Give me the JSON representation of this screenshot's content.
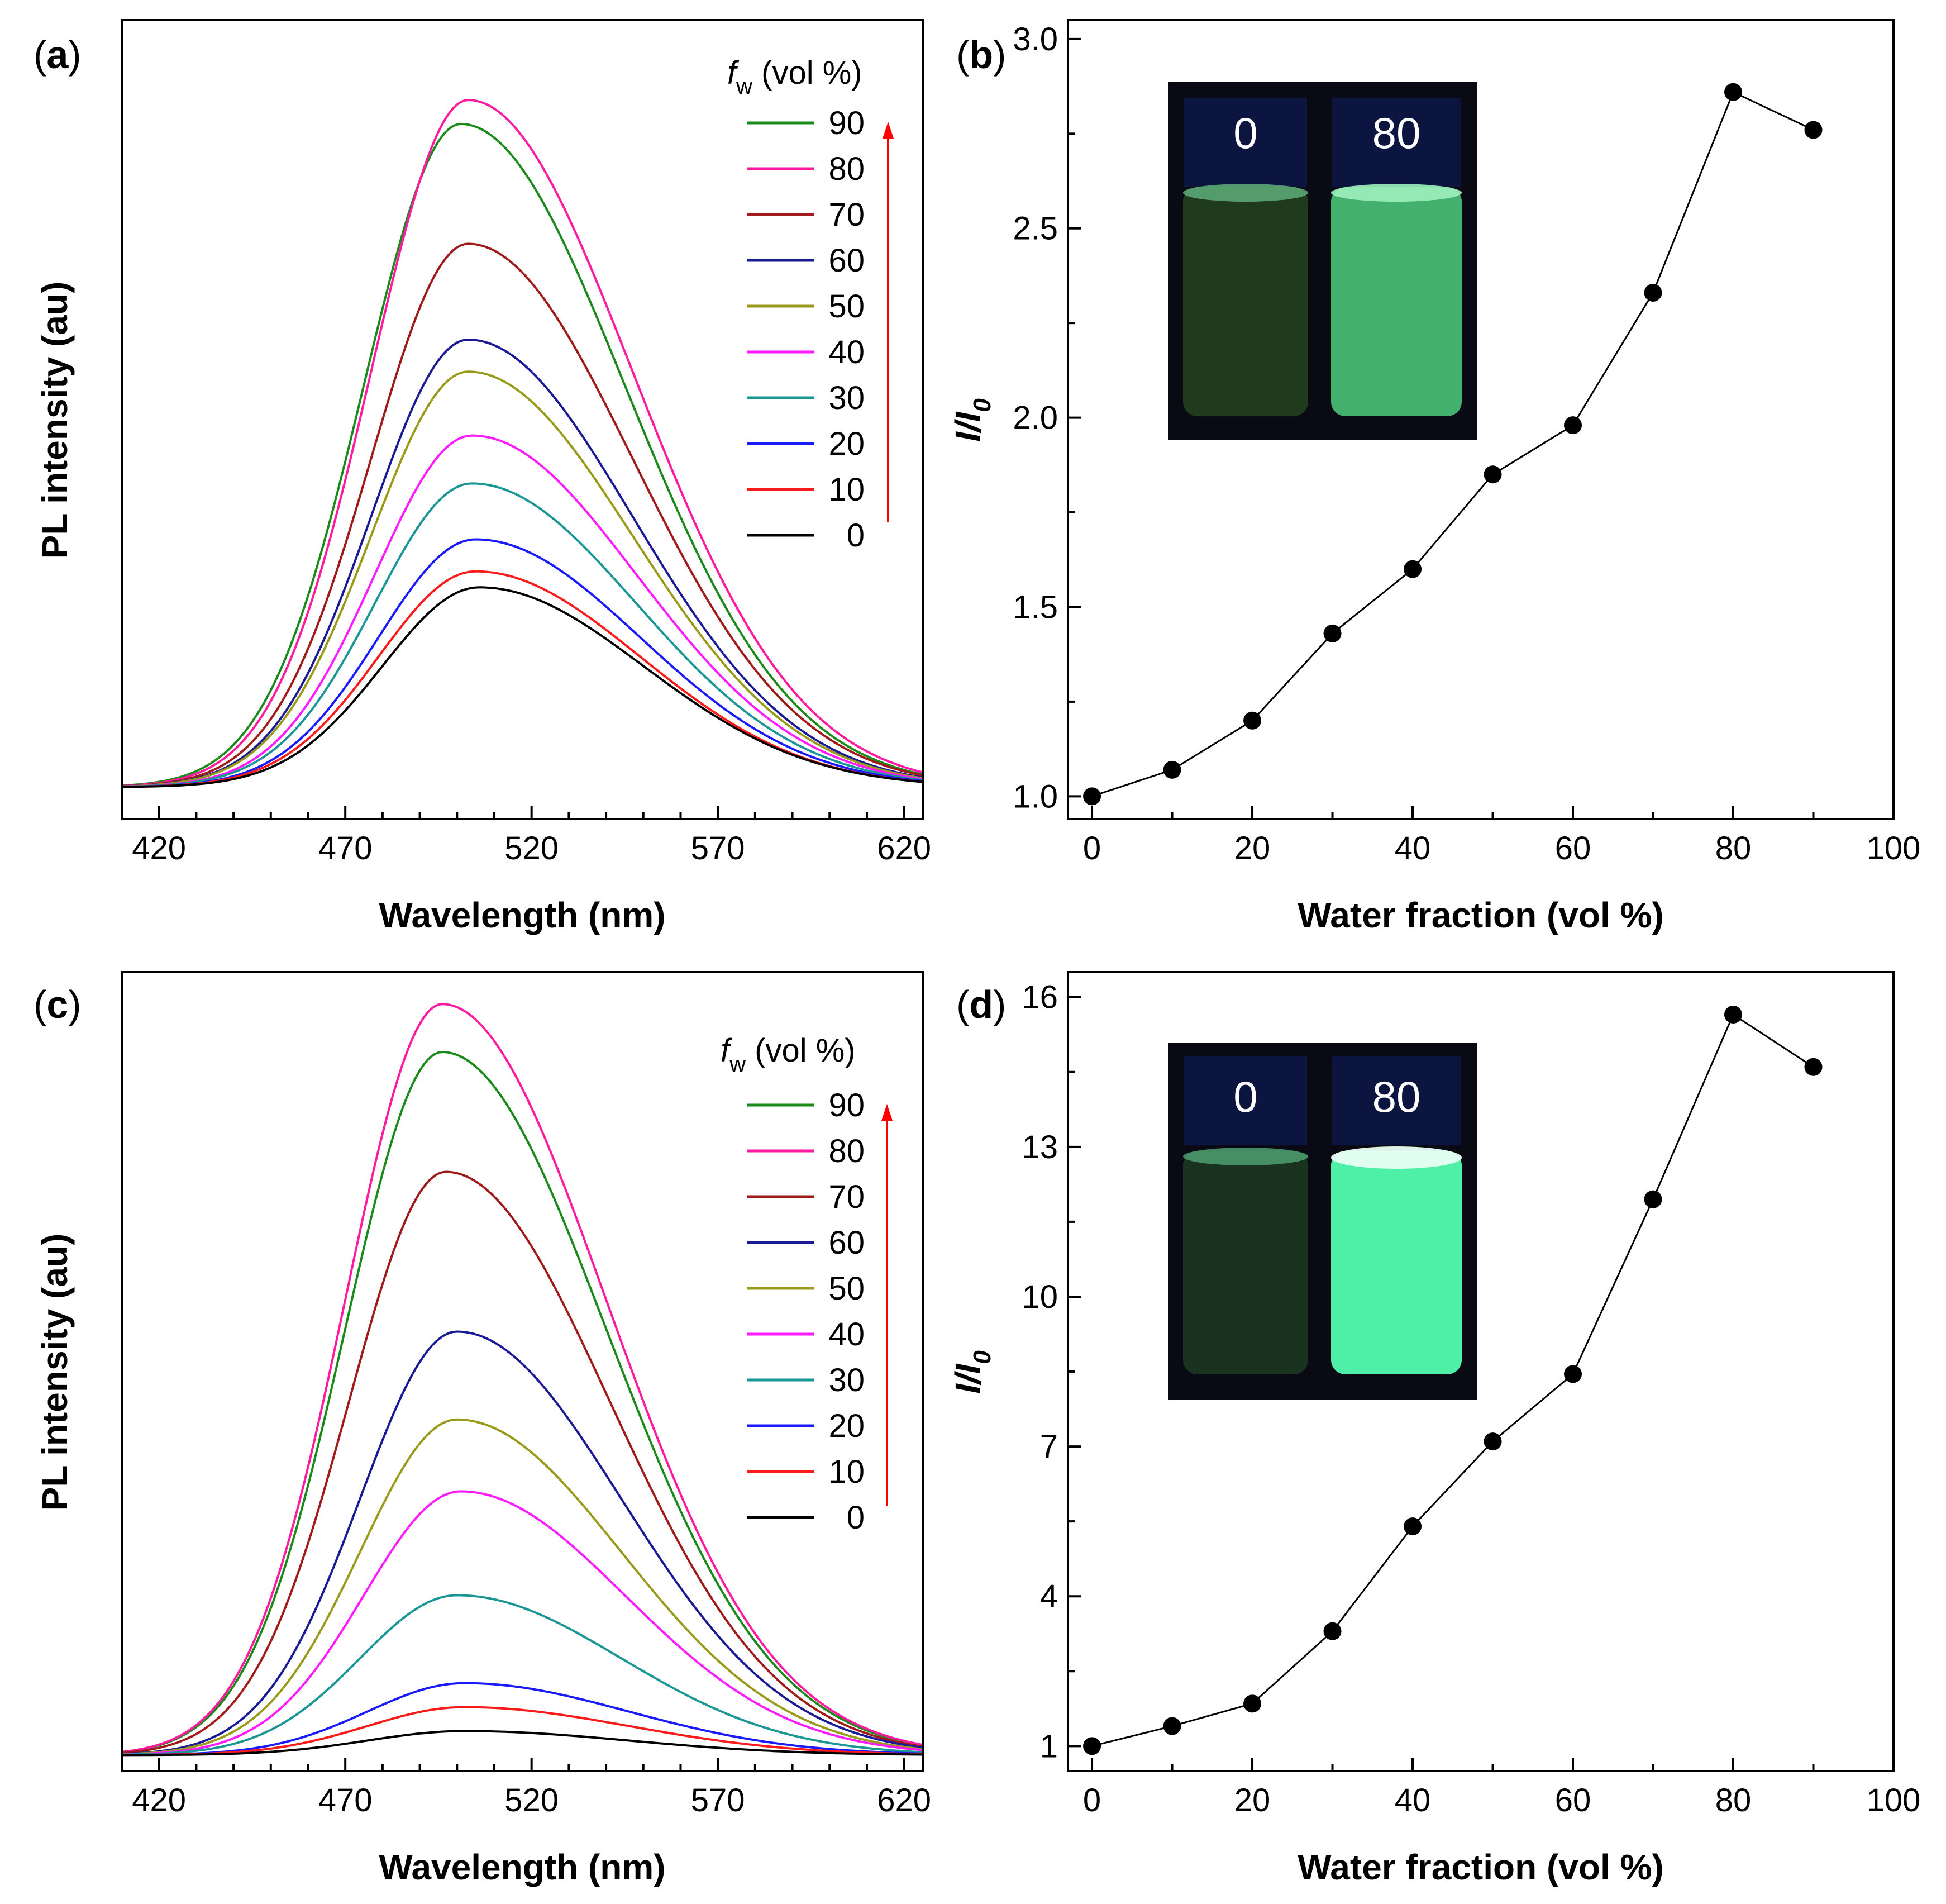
{
  "colors": {
    "f90": "#1a8a1a",
    "f80": "#ff1aa0",
    "f70": "#a01a1a",
    "f60": "#1a1a96",
    "f50": "#9a9a1a",
    "f40": "#ff1aff",
    "f30": "#1a9696",
    "f20": "#1a1aff",
    "f10": "#ff1a1a",
    "f0": "#000000",
    "arrow": "#ff0000",
    "inset_bg": "#0a0a14"
  },
  "panels": {
    "a": {
      "label_open": "(",
      "label_letter": "a",
      "label_close": ")"
    },
    "b": {
      "label_open": "(",
      "label_letter": "b",
      "label_close": ")"
    },
    "c": {
      "label_open": "(",
      "label_letter": "c",
      "label_close": ")"
    },
    "d": {
      "label_open": "(",
      "label_letter": "d",
      "label_close": ")"
    }
  },
  "legend": {
    "title_f": "f",
    "title_sub": "w",
    "title_rest": " (vol %)"
  },
  "insets": {
    "b": {
      "left_label": "0",
      "right_label": "80"
    },
    "d": {
      "left_label": "0",
      "right_label": "80"
    }
  },
  "chart_data": [
    {
      "panel": "a",
      "type": "line",
      "xlabel": "Wavelength (nm)",
      "ylabel": "PL intensity (au)",
      "xlim": [
        410,
        625
      ],
      "xticks": [
        420,
        470,
        520,
        570,
        620
      ],
      "ylim": [
        0,
        1
      ],
      "y_ticks_labeled": false,
      "series": [
        {
          "name": "90",
          "peak_x": 501,
          "peak_y": 0.87,
          "base_y": 0.04
        },
        {
          "name": "80",
          "peak_x": 503,
          "peak_y": 0.9,
          "base_y": 0.04
        },
        {
          "name": "70",
          "peak_x": 503,
          "peak_y": 0.72,
          "base_y": 0.04
        },
        {
          "name": "60",
          "peak_x": 503,
          "peak_y": 0.6,
          "base_y": 0.04
        },
        {
          "name": "50",
          "peak_x": 503,
          "peak_y": 0.56,
          "base_y": 0.04
        },
        {
          "name": "40",
          "peak_x": 504,
          "peak_y": 0.48,
          "base_y": 0.04
        },
        {
          "name": "30",
          "peak_x": 504,
          "peak_y": 0.42,
          "base_y": 0.04
        },
        {
          "name": "20",
          "peak_x": 505,
          "peak_y": 0.35,
          "base_y": 0.04
        },
        {
          "name": "10",
          "peak_x": 505,
          "peak_y": 0.31,
          "base_y": 0.04
        },
        {
          "name": "0",
          "peak_x": 506,
          "peak_y": 0.29,
          "base_y": 0.04
        }
      ]
    },
    {
      "panel": "b",
      "type": "scatter",
      "xlabel": "Water fraction (vol %)",
      "ylabel_main": "I/I",
      "ylabel_sub": "0",
      "xlim": [
        -3,
        100
      ],
      "xticks": [
        0,
        20,
        40,
        60,
        80,
        100
      ],
      "ylim": [
        0.94,
        3.05
      ],
      "yticks": [
        "1.0",
        "1.5",
        "2.0",
        "2.5",
        "3.0"
      ],
      "x": [
        0,
        10,
        20,
        30,
        40,
        50,
        60,
        70,
        80,
        90
      ],
      "y": [
        1.0,
        1.07,
        1.2,
        1.43,
        1.6,
        1.85,
        1.98,
        2.33,
        2.86,
        2.76
      ]
    },
    {
      "panel": "c",
      "type": "line",
      "xlabel": "Wavelength (nm)",
      "ylabel": "PL intensity (au)",
      "xlim": [
        410,
        625
      ],
      "xticks": [
        420,
        470,
        520,
        570,
        620
      ],
      "ylim": [
        0,
        1
      ],
      "y_ticks_labeled": false,
      "series": [
        {
          "name": "90",
          "peak_x": 496,
          "peak_y": 0.9,
          "base_y": 0.02
        },
        {
          "name": "80",
          "peak_x": 496,
          "peak_y": 0.96,
          "base_y": 0.02
        },
        {
          "name": "70",
          "peak_x": 497,
          "peak_y": 0.75,
          "base_y": 0.02
        },
        {
          "name": "60",
          "peak_x": 500,
          "peak_y": 0.55,
          "base_y": 0.02
        },
        {
          "name": "50",
          "peak_x": 500,
          "peak_y": 0.44,
          "base_y": 0.02
        },
        {
          "name": "40",
          "peak_x": 501,
          "peak_y": 0.35,
          "base_y": 0.02
        },
        {
          "name": "30",
          "peak_x": 500,
          "peak_y": 0.22,
          "base_y": 0.02
        },
        {
          "name": "20",
          "peak_x": 502,
          "peak_y": 0.11,
          "base_y": 0.02
        },
        {
          "name": "10",
          "peak_x": 502,
          "peak_y": 0.08,
          "base_y": 0.02
        },
        {
          "name": "0",
          "peak_x": 502,
          "peak_y": 0.05,
          "base_y": 0.02
        }
      ]
    },
    {
      "panel": "d",
      "type": "scatter",
      "xlabel": "Water fraction (vol %)",
      "ylabel_main": "I/I",
      "ylabel_sub": "0",
      "xlim": [
        -3,
        100
      ],
      "xticks": [
        0,
        20,
        40,
        60,
        80,
        100
      ],
      "ylim": [
        0.5,
        16.5
      ],
      "yticks": [
        "1",
        "4",
        "7",
        "10",
        "13",
        "16"
      ],
      "x": [
        0,
        10,
        20,
        30,
        40,
        50,
        60,
        70,
        80,
        90
      ],
      "y": [
        1.0,
        1.4,
        1.85,
        3.3,
        5.4,
        7.1,
        8.45,
        11.95,
        15.65,
        14.6
      ]
    }
  ]
}
